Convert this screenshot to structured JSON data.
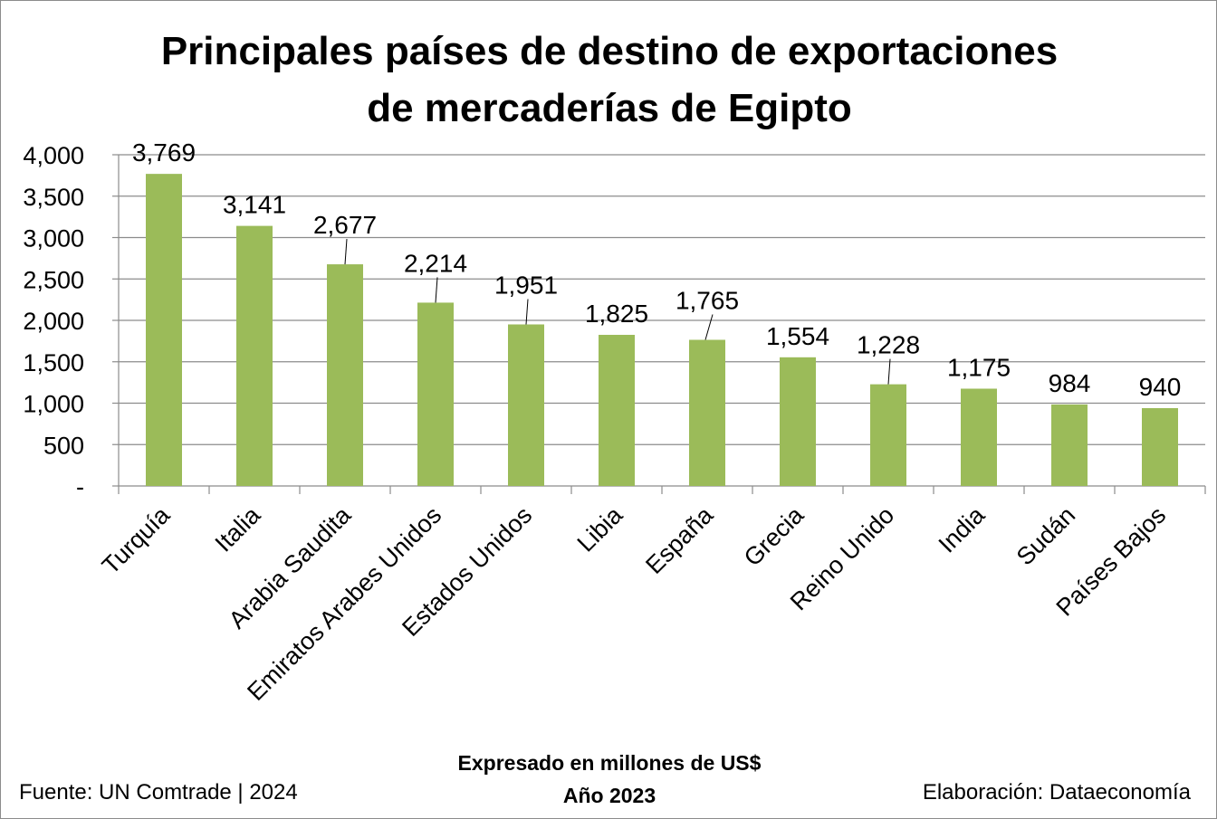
{
  "chart_data": {
    "type": "bar",
    "title_lines": [
      "Principales países de destino de exportaciones",
      "de mercaderías de Egipto"
    ],
    "categories": [
      "Turquía",
      "Italia",
      "Arabia Saudita",
      "Emiratos Arabes Unidos",
      "Estados Unidos",
      "Libia",
      "España",
      "Grecia",
      "Reino Unido",
      "India",
      "Sudán",
      "Países Bajos"
    ],
    "values": [
      3769,
      3141,
      2677,
      2214,
      1951,
      1825,
      1765,
      1554,
      1228,
      1175,
      984,
      940
    ],
    "data_labels": [
      "3,769",
      "3,141",
      "2,677",
      "2,214",
      "1,951",
      "1,825",
      "1,765",
      "1,554",
      "1,228",
      "1,175",
      "984",
      "940"
    ],
    "ylim": [
      0,
      4000
    ],
    "yticks": [
      0,
      500,
      1000,
      1500,
      2000,
      2500,
      3000,
      3500,
      4000
    ],
    "ytick_labels": [
      "-",
      "500",
      "1,000",
      "1,500",
      "2,000",
      "2,500",
      "3,000",
      "3,500",
      "4,000"
    ],
    "grid": true,
    "xlabel": "",
    "ylabel": "",
    "bar_color": "#9bbb59",
    "grid_color": "#8c8c8c"
  },
  "footer": {
    "source": "Fuente: UN Comtrade | 2024",
    "unit_note": "Expresado en millones de US$",
    "year": "Año 2023",
    "credit": "Elaboración: Dataeconomía"
  }
}
